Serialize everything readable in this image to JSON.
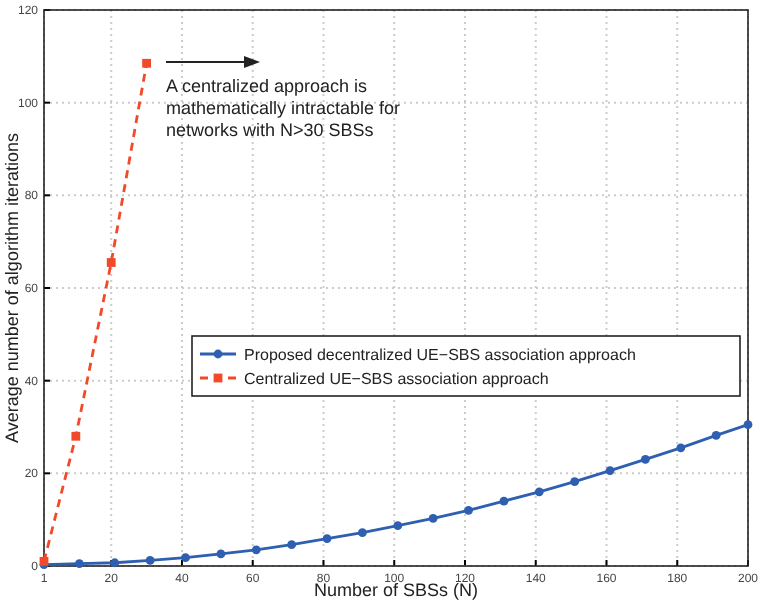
{
  "chart_data": {
    "type": "line",
    "xlabel": "Number of SBSs (N)",
    "ylabel": "Average number of algorithm iterations",
    "xlim": [
      1,
      200
    ],
    "xticks": [
      1,
      20,
      40,
      60,
      80,
      100,
      120,
      140,
      160,
      180,
      200
    ],
    "ylim": [
      0,
      120
    ],
    "yticks": [
      0,
      20,
      40,
      60,
      80,
      100,
      120
    ],
    "grid": true,
    "legend": "right",
    "annotations": [
      "A centralized approach is mathematically intractable for networks with N>30 SBSs"
    ],
    "series": [
      {
        "name": "Proposed decentralized UE−SBS association approach",
        "color": "#2e5fb0",
        "line_style": "solid",
        "marker": "circle",
        "x": [
          1,
          11,
          21,
          31,
          41,
          51,
          61,
          71,
          81,
          91,
          101,
          111,
          121,
          131,
          141,
          151,
          161,
          171,
          181,
          191,
          200
        ],
        "values": [
          0.3,
          0.5,
          0.7,
          1.2,
          1.8,
          2.6,
          3.5,
          4.6,
          5.9,
          7.2,
          8.7,
          10.3,
          12,
          14,
          16,
          18.2,
          20.6,
          23,
          25.5,
          28.2,
          30.5
        ]
      },
      {
        "name": "Centralized UE−SBS association approach",
        "color": "#f04a2a",
        "line_style": "dashed",
        "marker": "square",
        "x": [
          1,
          10,
          20,
          30
        ],
        "values": [
          1,
          28,
          65.5,
          108.5
        ]
      }
    ]
  }
}
